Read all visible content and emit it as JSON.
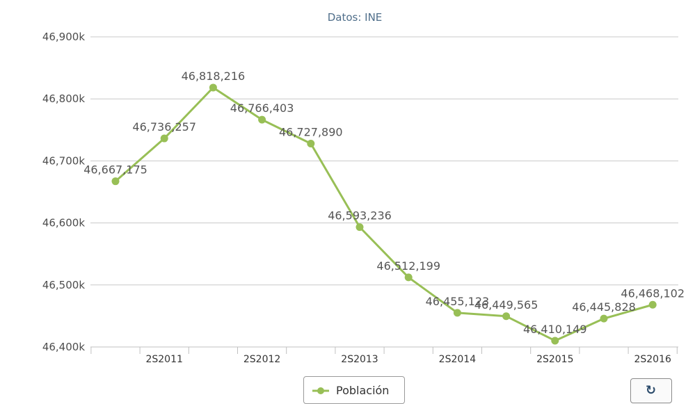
{
  "chart_data": {
    "type": "line",
    "title": "",
    "subtitle": "Datos: INE",
    "xlabel": "",
    "ylabel": "",
    "categories": [
      "",
      "2S2011",
      "",
      "2S2012",
      "",
      "2S2013",
      "",
      "2S2014",
      "",
      "2S2015",
      "",
      "2S2016"
    ],
    "series": [
      {
        "name": "Población",
        "color": "#98bf56",
        "values": [
          46667175,
          46736257,
          46818216,
          46766403,
          46727890,
          46593236,
          46512199,
          46455123,
          46449565,
          46410149,
          46445828,
          46468102
        ],
        "labels": [
          "46,667,175",
          "46,736,257",
          "46,818,216",
          "46,766,403",
          "46,727,890",
          "46,593,236",
          "46,512,199",
          "46,455,123",
          "46,449,565",
          "46,410,149",
          "46,445,828",
          "46,468,102"
        ]
      }
    ],
    "ylim": [
      46400000,
      46900000
    ],
    "yticks": [
      46400000,
      46500000,
      46600000,
      46700000,
      46800000,
      46900000
    ],
    "ytick_labels": [
      "46,400k",
      "46,500k",
      "46,600k",
      "46,700k",
      "46,800k",
      "46,900k"
    ],
    "grid": true,
    "legend": "bottom-center"
  },
  "legend": {
    "label": "Población"
  },
  "toolbar": {
    "refresh_icon": "refresh-icon"
  }
}
